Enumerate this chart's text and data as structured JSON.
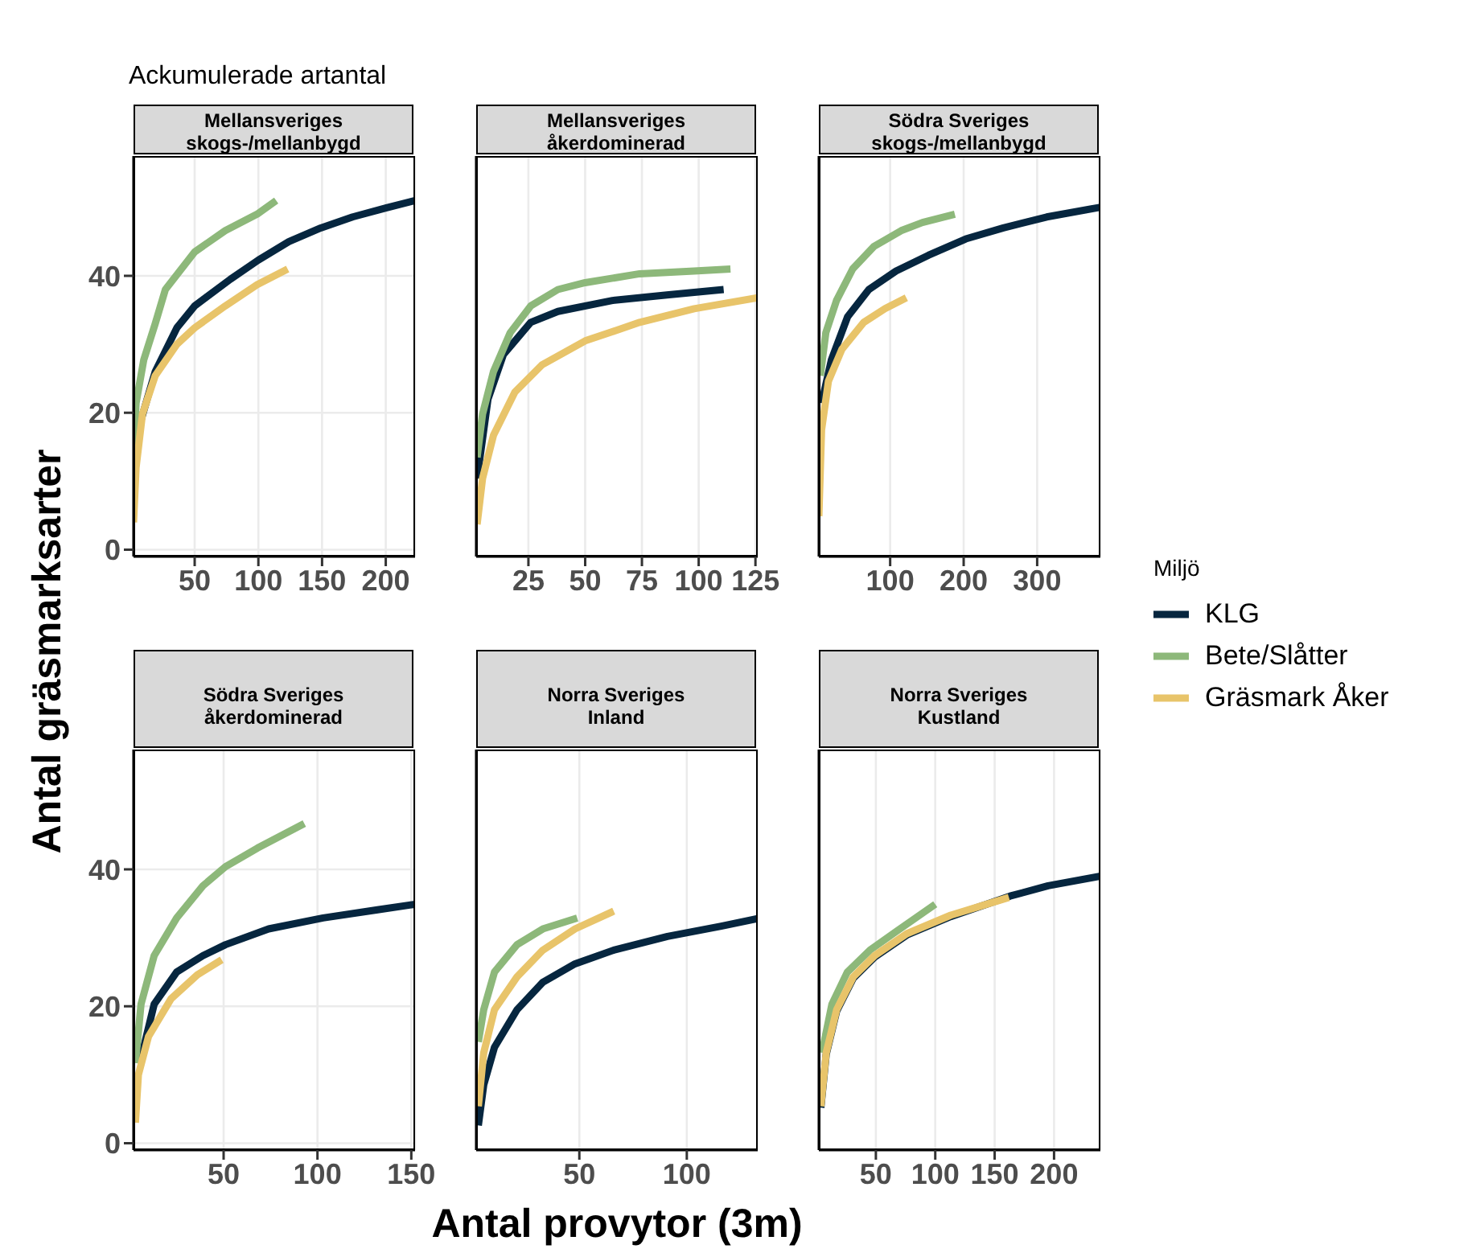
{
  "chart_data": [
    {
      "type": "line",
      "title": "Mellansveriges\nskogs-/mellanbygd",
      "ylabel": "Antal gräsmarksarter",
      "annotations": [
        "Ackumulerade artantal"
      ],
      "xlim": [
        2,
        223
      ],
      "xticks": [
        50,
        100,
        150,
        200
      ],
      "ylim": [
        -1,
        57.5
      ],
      "yticks": [
        0,
        20,
        40
      ],
      "grid": true,
      "series": [
        {
          "color": "#06263f",
          "x": [
            8,
            19,
            36,
            50,
            78,
            100,
            124,
            149,
            174,
            200,
            223
          ],
          "values": [
            19,
            26,
            32.4,
            35.6,
            39.5,
            42.3,
            45,
            47,
            48.6,
            49.9,
            51
          ]
        },
        {
          "color": "#8db87a",
          "x": [
            2,
            4,
            10,
            19,
            27,
            50,
            74,
            99,
            114
          ],
          "values": [
            14,
            21.4,
            27.7,
            33,
            38,
            43.5,
            46.6,
            49,
            51
          ]
        },
        {
          "color": "#e8c46a",
          "x": [
            2,
            4,
            9,
            19,
            36,
            50,
            74,
            99,
            123
          ],
          "values": [
            4,
            12,
            19.8,
            25.4,
            30,
            32.4,
            35.6,
            38.7,
            41
          ]
        }
      ]
    },
    {
      "type": "line",
      "title": "Mellansveriges\nåkerdominerad",
      "xlim": [
        2,
        126
      ],
      "xticks": [
        25,
        50,
        75,
        100,
        125
      ],
      "ylim": [
        -1,
        57.5
      ],
      "yticks": [
        0,
        20,
        40
      ],
      "grid": true,
      "tick_labels": "x",
      "series": [
        {
          "color": "#06263f",
          "x": [
            2.4,
            7.2,
            14,
            26,
            38,
            62,
            86,
            111
          ],
          "values": [
            10.4,
            22,
            28.5,
            33.2,
            34.8,
            36.4,
            37.2,
            38
          ]
        },
        {
          "color": "#8db87a",
          "x": [
            2.4,
            4.8,
            9.6,
            17,
            26,
            38,
            50,
            74,
            98,
            114
          ],
          "values": [
            13.5,
            19.8,
            26,
            31.7,
            35.6,
            38,
            39,
            40.3,
            40.7,
            41
          ]
        },
        {
          "color": "#e8c46a",
          "x": [
            2.4,
            4.8,
            9.6,
            19,
            31,
            50,
            74,
            98,
            126
          ],
          "values": [
            3.7,
            10.4,
            16.7,
            23,
            27,
            30.5,
            33.2,
            35.2,
            36.8
          ]
        }
      ]
    },
    {
      "type": "line",
      "title": "Södra Sveriges\nskogs-/mellanbygd",
      "legend": "right",
      "legend_title": "Miljö",
      "xlim": [
        3,
        386
      ],
      "xticks": [
        100,
        200,
        300
      ],
      "ylim": [
        -1,
        57.5
      ],
      "yticks": [
        0,
        20,
        40
      ],
      "grid": true,
      "tick_labels": "x",
      "series": [
        {
          "name": "KLG",
          "color": "#06263f",
          "x": [
            6.7,
            20,
            42,
            71,
            108,
            152,
            203,
            254,
            313,
            385
          ],
          "values": [
            21.4,
            27.7,
            34,
            38,
            40.7,
            43,
            45.4,
            47,
            48.6,
            50
          ]
        },
        {
          "name": "Bete/Slåtter",
          "color": "#8db87a",
          "x": [
            5,
            12.5,
            27,
            49,
            78,
            115,
            144,
            188
          ],
          "values": [
            25.4,
            31.7,
            36.4,
            41,
            44.3,
            46.6,
            47.8,
            49
          ]
        },
        {
          "name": "Gräsmark Åker",
          "color": "#e8c46a",
          "x": [
            3,
            6.7,
            16,
            34.5,
            64,
            93,
            122
          ],
          "values": [
            4.9,
            17.5,
            24.6,
            29.3,
            33.2,
            35.2,
            36.8
          ]
        }
      ]
    },
    {
      "type": "line",
      "title": "Södra Sveriges\nåkerdominerad",
      "xlim": [
        2,
        152
      ],
      "xticks": [
        50,
        100,
        150
      ],
      "ylim": [
        -1,
        57.5
      ],
      "yticks": [
        0,
        20,
        40
      ],
      "grid": true,
      "series": [
        {
          "color": "#06263f",
          "x": [
            6,
            13,
            25,
            39,
            51,
            74,
            103,
            132,
            152
          ],
          "values": [
            12.4,
            20.3,
            25,
            27.4,
            29,
            31.3,
            32.9,
            34.1,
            34.9
          ]
        },
        {
          "color": "#8db87a",
          "x": [
            3,
            6,
            13,
            25,
            39,
            51,
            68,
            93
          ],
          "values": [
            11.7,
            20.3,
            27.4,
            32.9,
            37.6,
            40.4,
            43.1,
            46.7
          ]
        },
        {
          "color": "#e8c46a",
          "x": [
            3,
            4.6,
            10,
            22,
            36,
            49
          ],
          "values": [
            3,
            10,
            15.6,
            21.1,
            24.6,
            26.8
          ]
        }
      ]
    },
    {
      "type": "line",
      "title": "Norra Sveriges\nInland",
      "xlabel": "Antal provytor (3m)",
      "xlim": [
        2,
        133
      ],
      "xticks": [
        50,
        100
      ],
      "ylim": [
        -1,
        57.5
      ],
      "yticks": [
        0,
        20,
        40
      ],
      "grid": true,
      "tick_labels": "x",
      "series": [
        {
          "color": "#06263f",
          "x": [
            3,
            5.5,
            10.5,
            21,
            33,
            48,
            66,
            91,
            116,
            133
          ],
          "values": [
            2.6,
            8.5,
            14,
            19.5,
            23.5,
            26.2,
            28.2,
            30.2,
            31.7,
            32.8
          ]
        },
        {
          "color": "#8db87a",
          "x": [
            3,
            5.5,
            10.5,
            21,
            33,
            49
          ],
          "values": [
            14.8,
            19.5,
            25,
            29,
            31.3,
            32.9
          ]
        },
        {
          "color": "#e8c46a",
          "x": [
            3,
            5.5,
            10.5,
            21,
            33,
            48,
            66
          ],
          "values": [
            5.4,
            13.2,
            19.5,
            24.3,
            28.2,
            31.3,
            33.9
          ]
        }
      ]
    },
    {
      "type": "line",
      "title": "Norra Sveriges\nKustland",
      "xlim": [
        2,
        239
      ],
      "xticks": [
        50,
        100,
        150,
        200
      ],
      "ylim": [
        -1,
        57.5
      ],
      "yticks": [
        0,
        20,
        40
      ],
      "grid": true,
      "tick_labels": "x",
      "series": [
        {
          "color": "#06263f",
          "x": [
            3.7,
            8.2,
            17,
            31,
            49,
            76,
            113,
            163,
            195,
            239
          ],
          "values": [
            5.2,
            13,
            19.3,
            24.1,
            27.2,
            30.4,
            33.1,
            36.1,
            37.6,
            39
          ]
        },
        {
          "color": "#8db87a",
          "x": [
            4.6,
            13,
            26,
            45,
            67,
            100
          ],
          "values": [
            13.2,
            20.3,
            25,
            28.2,
            30.9,
            34.9
          ]
        },
        {
          "color": "#e8c46a",
          "x": [
            3.7,
            8.2,
            17,
            31,
            49,
            76,
            113,
            162
          ],
          "values": [
            5.4,
            13.2,
            19.5,
            24.3,
            27.4,
            30.6,
            33.3,
            35.9
          ]
        }
      ]
    }
  ]
}
